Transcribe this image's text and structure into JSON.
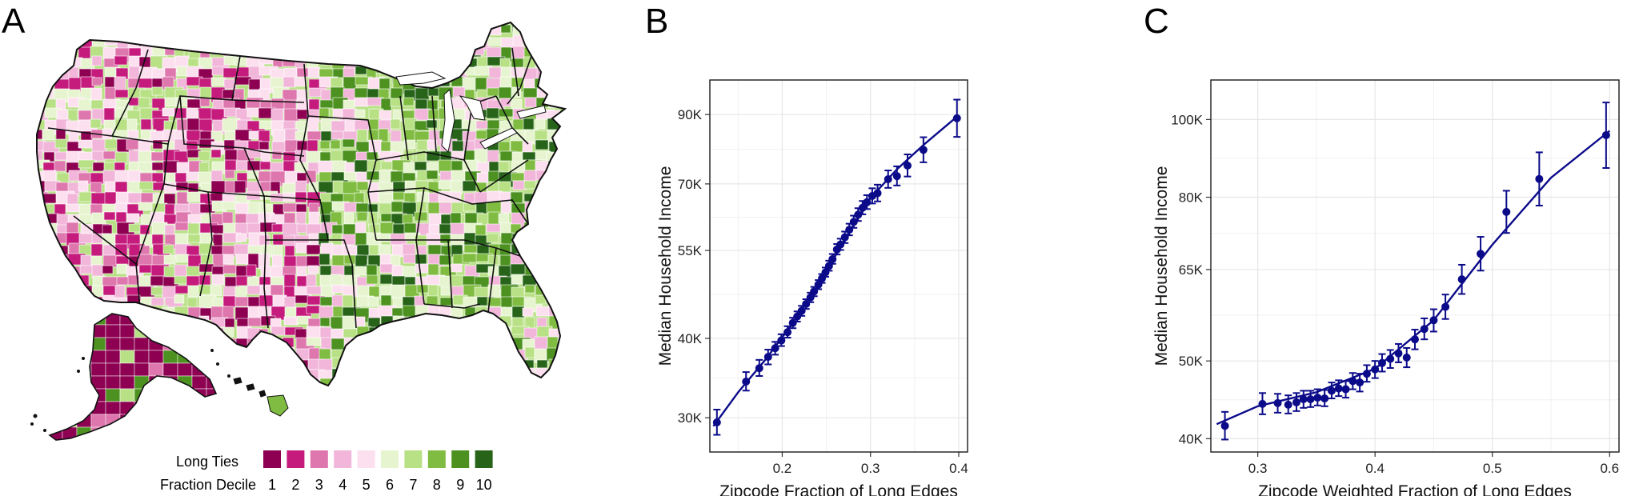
{
  "panel_labels": {
    "a": "A",
    "b": "B",
    "c": "C"
  },
  "colors": {
    "series": "#0b0b8a",
    "grid": "#e6e6e6",
    "frame": "#1a1a1a",
    "state_border": "#111111",
    "water": "#ffffff",
    "deciles": [
      "#8e0152",
      "#c51b7d",
      "#de77ae",
      "#f1b6da",
      "#fde0ef",
      "#e6f5d0",
      "#b8e186",
      "#7fbc41",
      "#4d9221",
      "#276419"
    ]
  },
  "map": {
    "legend_title_1": "Long Ties",
    "legend_title_2": "Fraction Decile",
    "legend_labels": [
      "1",
      "2",
      "3",
      "4",
      "5",
      "6",
      "7",
      "8",
      "9",
      "10"
    ]
  },
  "chart_data": [
    {
      "type": "scatter",
      "panel": "B",
      "xlabel": "Zipcode Fraction of Long Edges",
      "ylabel": "Median Household Income",
      "xlim": [
        0.118,
        0.41
      ],
      "ylim": [
        26500,
        102000
      ],
      "yscale": "log",
      "xticks": [
        0.2,
        0.3,
        0.4
      ],
      "xtick_labels": [
        "0.2",
        "0.3",
        "0.4"
      ],
      "yticks": [
        30000,
        40000,
        55000,
        70000,
        90000
      ],
      "ytick_labels": [
        "30K",
        "40K",
        "55K",
        "70K",
        "90K"
      ],
      "points": [
        {
          "x": 0.126,
          "y": 29500,
          "lo": 28200,
          "hi": 30900
        },
        {
          "x": 0.159,
          "y": 34200,
          "lo": 33100,
          "hi": 35400
        },
        {
          "x": 0.174,
          "y": 35900,
          "lo": 34900,
          "hi": 37000
        },
        {
          "x": 0.184,
          "y": 37400,
          "lo": 36400,
          "hi": 38400
        },
        {
          "x": 0.192,
          "y": 38600,
          "lo": 37700,
          "hi": 39500
        },
        {
          "x": 0.199,
          "y": 39700,
          "lo": 38900,
          "hi": 40600
        },
        {
          "x": 0.206,
          "y": 40900,
          "lo": 40100,
          "hi": 41800
        },
        {
          "x": 0.212,
          "y": 42300,
          "lo": 41500,
          "hi": 43100
        },
        {
          "x": 0.217,
          "y": 43300,
          "lo": 42500,
          "hi": 44100
        },
        {
          "x": 0.222,
          "y": 44200,
          "lo": 43400,
          "hi": 45000
        },
        {
          "x": 0.227,
          "y": 45300,
          "lo": 44500,
          "hi": 46100
        },
        {
          "x": 0.232,
          "y": 46400,
          "lo": 45600,
          "hi": 47200
        },
        {
          "x": 0.236,
          "y": 47400,
          "lo": 46600,
          "hi": 48200
        },
        {
          "x": 0.241,
          "y": 48600,
          "lo": 47800,
          "hi": 49400
        },
        {
          "x": 0.245,
          "y": 49700,
          "lo": 48900,
          "hi": 50500
        },
        {
          "x": 0.249,
          "y": 50800,
          "lo": 50000,
          "hi": 51700
        },
        {
          "x": 0.253,
          "y": 52000,
          "lo": 51100,
          "hi": 53000
        },
        {
          "x": 0.257,
          "y": 53300,
          "lo": 52400,
          "hi": 54300
        },
        {
          "x": 0.262,
          "y": 55200,
          "lo": 54200,
          "hi": 56300
        },
        {
          "x": 0.266,
          "y": 56200,
          "lo": 55100,
          "hi": 57400
        },
        {
          "x": 0.271,
          "y": 57700,
          "lo": 56500,
          "hi": 58900
        },
        {
          "x": 0.276,
          "y": 59300,
          "lo": 58100,
          "hi": 60600
        },
        {
          "x": 0.281,
          "y": 61000,
          "lo": 59700,
          "hi": 62400
        },
        {
          "x": 0.286,
          "y": 62600,
          "lo": 61200,
          "hi": 64100
        },
        {
          "x": 0.291,
          "y": 64200,
          "lo": 62700,
          "hi": 65800
        },
        {
          "x": 0.296,
          "y": 65500,
          "lo": 63900,
          "hi": 67200
        },
        {
          "x": 0.302,
          "y": 67000,
          "lo": 65200,
          "hi": 68900
        },
        {
          "x": 0.308,
          "y": 67700,
          "lo": 65700,
          "hi": 69800
        },
        {
          "x": 0.32,
          "y": 71200,
          "lo": 69000,
          "hi": 73500
        },
        {
          "x": 0.33,
          "y": 72000,
          "lo": 69600,
          "hi": 74600
        },
        {
          "x": 0.342,
          "y": 74800,
          "lo": 71900,
          "hi": 77900
        },
        {
          "x": 0.36,
          "y": 79200,
          "lo": 75700,
          "hi": 82900
        },
        {
          "x": 0.398,
          "y": 88800,
          "lo": 83000,
          "hi": 95000
        }
      ],
      "fit_line": {
        "x": [
          0.122,
          0.15,
          0.18,
          0.21,
          0.24,
          0.27,
          0.3,
          0.33,
          0.36,
          0.4
        ],
        "y": [
          29100,
          32900,
          36900,
          41900,
          48200,
          57000,
          66500,
          73800,
          80600,
          89800
        ]
      }
    },
    {
      "type": "scatter",
      "panel": "C",
      "xlabel": "Zipcode Weighted Fraction of Long Edges",
      "ylabel": "Median Household Income",
      "xlim": [
        0.26,
        0.608
      ],
      "ylim": [
        38500,
        112000
      ],
      "yscale": "log",
      "xticks": [
        0.3,
        0.4,
        0.5,
        0.6
      ],
      "xtick_labels": [
        "0.3",
        "0.4",
        "0.5",
        "0.6"
      ],
      "yticks": [
        40000,
        50000,
        65000,
        80000,
        100000
      ],
      "ytick_labels": [
        "40K",
        "50K",
        "65K",
        "80K",
        "100K"
      ],
      "points": [
        {
          "x": 0.272,
          "y": 41500,
          "lo": 39900,
          "hi": 43200
        },
        {
          "x": 0.304,
          "y": 44200,
          "lo": 42900,
          "hi": 45600
        },
        {
          "x": 0.317,
          "y": 44300,
          "lo": 43100,
          "hi": 45500
        },
        {
          "x": 0.326,
          "y": 44100,
          "lo": 43000,
          "hi": 45300
        },
        {
          "x": 0.333,
          "y": 44400,
          "lo": 43300,
          "hi": 45600
        },
        {
          "x": 0.339,
          "y": 44800,
          "lo": 43700,
          "hi": 45900
        },
        {
          "x": 0.345,
          "y": 44800,
          "lo": 43800,
          "hi": 45900
        },
        {
          "x": 0.351,
          "y": 45000,
          "lo": 44000,
          "hi": 46100
        },
        {
          "x": 0.357,
          "y": 44900,
          "lo": 43900,
          "hi": 46000
        },
        {
          "x": 0.363,
          "y": 45900,
          "lo": 44900,
          "hi": 47000
        },
        {
          "x": 0.369,
          "y": 46200,
          "lo": 45200,
          "hi": 47300
        },
        {
          "x": 0.375,
          "y": 46100,
          "lo": 45000,
          "hi": 47200
        },
        {
          "x": 0.381,
          "y": 47200,
          "lo": 46100,
          "hi": 48300
        },
        {
          "x": 0.387,
          "y": 47000,
          "lo": 45800,
          "hi": 48200
        },
        {
          "x": 0.393,
          "y": 48200,
          "lo": 47100,
          "hi": 49400
        },
        {
          "x": 0.4,
          "y": 48800,
          "lo": 47600,
          "hi": 50000
        },
        {
          "x": 0.406,
          "y": 49700,
          "lo": 48500,
          "hi": 51000
        },
        {
          "x": 0.413,
          "y": 50300,
          "lo": 49000,
          "hi": 51600
        },
        {
          "x": 0.42,
          "y": 51100,
          "lo": 49800,
          "hi": 52500
        },
        {
          "x": 0.427,
          "y": 50500,
          "lo": 49100,
          "hi": 51900
        },
        {
          "x": 0.434,
          "y": 53200,
          "lo": 51700,
          "hi": 54700
        },
        {
          "x": 0.442,
          "y": 54800,
          "lo": 53200,
          "hi": 56500
        },
        {
          "x": 0.45,
          "y": 56200,
          "lo": 54400,
          "hi": 58000
        },
        {
          "x": 0.46,
          "y": 58400,
          "lo": 56400,
          "hi": 60500
        },
        {
          "x": 0.474,
          "y": 63200,
          "lo": 60600,
          "hi": 65900
        },
        {
          "x": 0.49,
          "y": 68000,
          "lo": 64800,
          "hi": 71400
        },
        {
          "x": 0.512,
          "y": 76700,
          "lo": 72200,
          "hi": 81500
        },
        {
          "x": 0.54,
          "y": 84300,
          "lo": 78100,
          "hi": 91000
        },
        {
          "x": 0.597,
          "y": 95600,
          "lo": 87000,
          "hi": 105000
        }
      ],
      "fit_line": {
        "x": [
          0.265,
          0.3,
          0.35,
          0.4,
          0.45,
          0.5,
          0.55,
          0.6
        ],
        "y": [
          41700,
          43900,
          45700,
          48900,
          56200,
          69800,
          84600,
          96800
        ]
      }
    }
  ]
}
